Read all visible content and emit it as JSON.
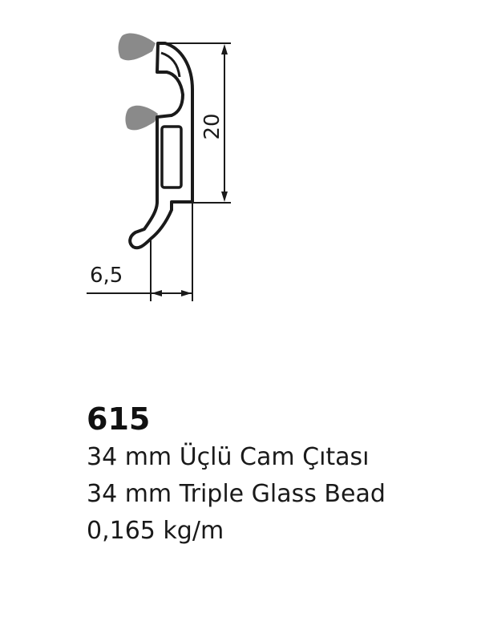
{
  "drawing": {
    "dimension_height": "20",
    "dimension_width": "6,5",
    "gasket_color": "#8a8a8a",
    "line_color": "#1a1a1a"
  },
  "product": {
    "code": "615",
    "name_tr": "34 mm Üçlü Cam Çıtası",
    "name_en": "34 mm Triple Glass Bead",
    "weight": "0,165 kg/m"
  }
}
